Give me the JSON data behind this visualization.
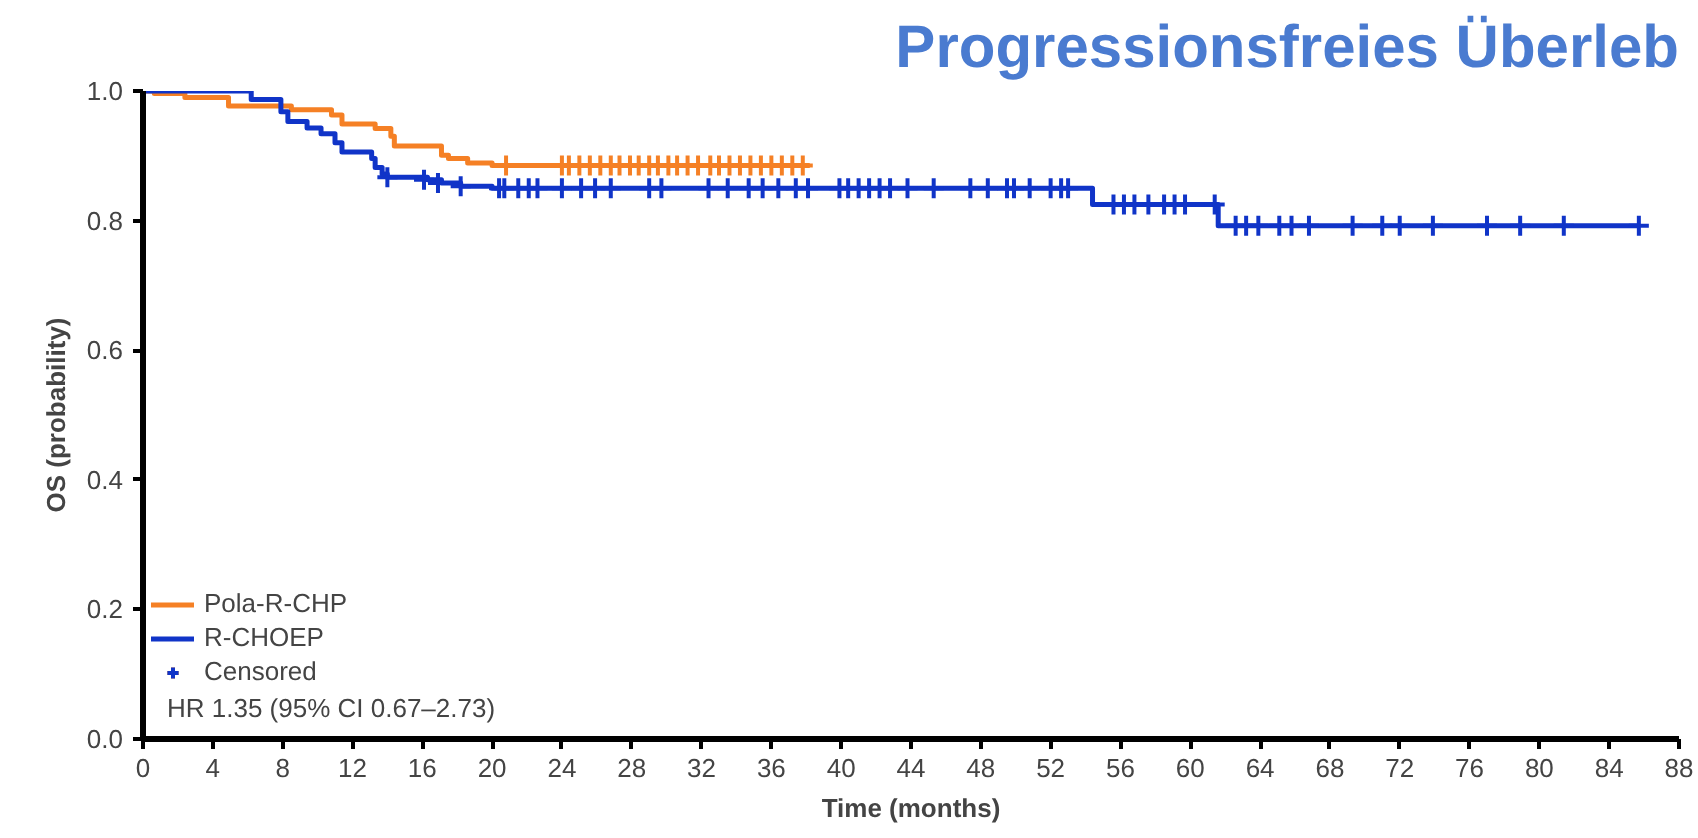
{
  "chart_data": {
    "type": "step",
    "title": "Progressionsfreies Überleb",
    "xlabel": "Time (months)",
    "ylabel": "OS (probability)",
    "xlim": [
      0,
      88
    ],
    "xticks": [
      0,
      4,
      8,
      12,
      16,
      20,
      24,
      28,
      32,
      36,
      40,
      44,
      48,
      52,
      56,
      60,
      64,
      68,
      72,
      76,
      80,
      84,
      88
    ],
    "ylim": [
      0,
      1
    ],
    "yticks": [
      {
        "value": 0,
        "label": "0.0"
      },
      {
        "value": 0.2,
        "label": "0.2"
      },
      {
        "value": 0.4,
        "label": "0.4"
      },
      {
        "value": 0.6,
        "label": "0.6"
      },
      {
        "value": 0.8,
        "label": "0.8"
      },
      {
        "value": 1,
        "label": "1.0"
      }
    ],
    "grid": false,
    "legend": "bottom left",
    "annotations": [
      "HR 1.35 (95% CI 0.67–2.73)"
    ],
    "series": [
      {
        "name": "Pola-R-CHP",
        "color": "#f58025",
        "x": [
          0,
          0.65,
          2.4,
          4.9,
          8.5,
          10.8,
          11.4,
          13.3,
          14.2,
          14.4,
          17.1,
          17.5,
          18.6,
          20.0,
          38.2
        ],
        "values": [
          1.0,
          0.996,
          0.99,
          0.977,
          0.971,
          0.963,
          0.949,
          0.942,
          0.93,
          0.915,
          0.901,
          0.896,
          0.889,
          0.885,
          0.885
        ]
      },
      {
        "name": "R-CHOEP",
        "color": "#1034c8",
        "x": [
          0,
          6.2,
          7.9,
          8.3,
          9.4,
          10.2,
          11.0,
          11.4,
          13.1,
          13.3,
          13.7,
          14.0,
          16.3,
          17.1,
          18.2,
          20.0,
          54.4,
          61.6,
          85.7
        ],
        "values": [
          1.0,
          0.987,
          0.968,
          0.953,
          0.943,
          0.934,
          0.92,
          0.906,
          0.896,
          0.882,
          0.872,
          0.867,
          0.863,
          0.858,
          0.853,
          0.85,
          0.825,
          0.792,
          0.792
        ]
      },
      {
        "name": "Censored",
        "type": "scatter",
        "marker": "cross",
        "color": "#f58025",
        "x": [
          20.8,
          24.0,
          24.4,
          25.0,
          25.6,
          26.2,
          26.8,
          27.3,
          27.9,
          28.4,
          29.0,
          29.5,
          30.1,
          30.6,
          31.2,
          31.8,
          32.5,
          33.0,
          33.6,
          34.2,
          34.8,
          35.4,
          36.0,
          36.6,
          37.2,
          37.8
        ],
        "values": [
          0.885,
          0.885,
          0.885,
          0.885,
          0.885,
          0.885,
          0.885,
          0.885,
          0.885,
          0.885,
          0.885,
          0.885,
          0.885,
          0.885,
          0.885,
          0.885,
          0.885,
          0.885,
          0.885,
          0.885,
          0.885,
          0.885,
          0.885,
          0.885,
          0.885,
          0.885
        ]
      },
      {
        "type": "scatter",
        "marker": "cross",
        "color": "#1034c8",
        "x": [
          14.0,
          16.1,
          16.9,
          18.2,
          20.4,
          20.7,
          21.5,
          22.1,
          22.6,
          24.0,
          25.1,
          25.9,
          26.8,
          29.0,
          29.7,
          32.4,
          33.5,
          34.7,
          35.5,
          36.4,
          37.4,
          38.1,
          39.9,
          40.4,
          41.0,
          41.6,
          42.2,
          42.8,
          43.8,
          45.3,
          47.4,
          48.4,
          49.5,
          49.9,
          50.8,
          52.0,
          52.6,
          53.0,
          55.6,
          56.2,
          56.8,
          57.6,
          58.5,
          59.1,
          59.7,
          61.4,
          62.6,
          63.2,
          63.9,
          65.1,
          65.8,
          66.8,
          69.3,
          71.0,
          72.0,
          73.9,
          77.0,
          78.9,
          81.4,
          85.7
        ],
        "values": [
          0.867,
          0.863,
          0.858,
          0.853,
          0.85,
          0.85,
          0.85,
          0.85,
          0.85,
          0.85,
          0.85,
          0.85,
          0.85,
          0.85,
          0.85,
          0.85,
          0.85,
          0.85,
          0.85,
          0.85,
          0.85,
          0.85,
          0.85,
          0.85,
          0.85,
          0.85,
          0.85,
          0.85,
          0.85,
          0.85,
          0.85,
          0.85,
          0.85,
          0.85,
          0.85,
          0.85,
          0.85,
          0.85,
          0.825,
          0.825,
          0.825,
          0.825,
          0.825,
          0.825,
          0.825,
          0.825,
          0.792,
          0.792,
          0.792,
          0.792,
          0.792,
          0.792,
          0.792,
          0.792,
          0.792,
          0.792,
          0.792,
          0.792,
          0.792,
          0.792
        ]
      }
    ]
  }
}
